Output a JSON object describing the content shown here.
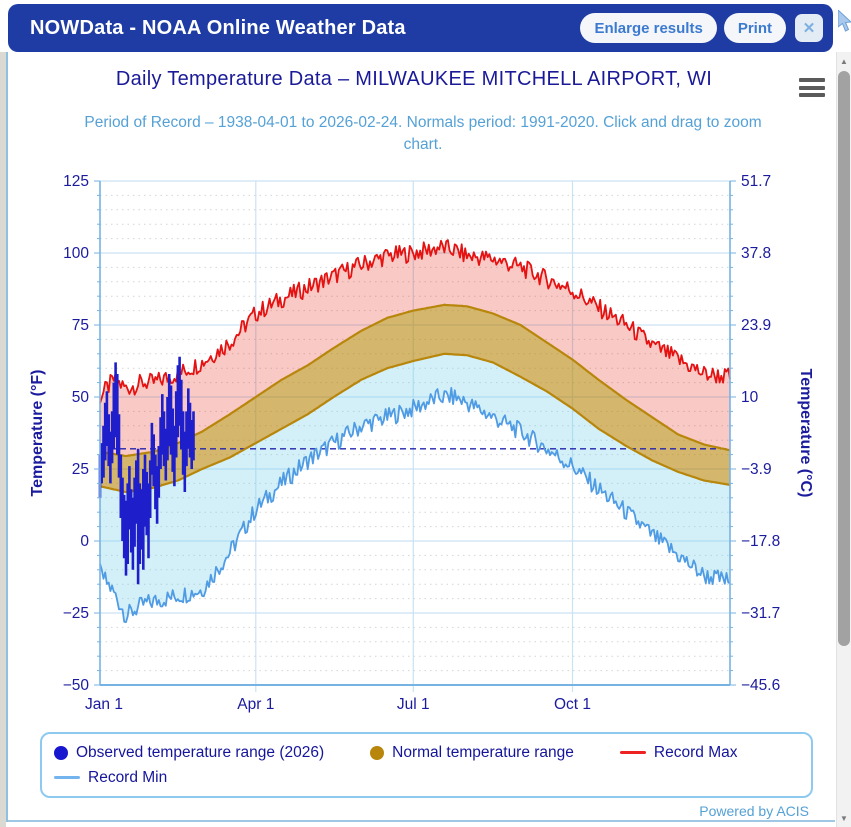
{
  "header": {
    "title": "NOWData - NOAA Online Weather Data",
    "buttons": {
      "enlarge": "Enlarge results",
      "print": "Print",
      "close_glyph": "✕"
    }
  },
  "footer": {
    "powered_by": "Powered by ACIS"
  },
  "scrollbar": {
    "up_glyph": "▲",
    "down_glyph": "▼"
  },
  "legend": {
    "items": [
      {
        "label": "Observed temperature range (2026)",
        "marker": "circle",
        "color": "#1717cf"
      },
      {
        "label": "Normal temperature range",
        "marker": "circle",
        "color": "#b8860b"
      },
      {
        "label": "Record Max",
        "marker": "line",
        "color": "#ee2222"
      },
      {
        "label": "Record Min",
        "marker": "line",
        "color": "#74b4ee"
      }
    ]
  },
  "chart_data": {
    "type": "line",
    "title": "Daily Temperature Data – MILWAUKEE MITCHELL AIRPORT, WI",
    "subtitle": "Period of Record – 1938-04-01 to 2026-02-24. Normals period: 1991-2020. Click and drag to zoom chart.",
    "x_axis": {
      "range_days": [
        0,
        364
      ],
      "ticks": [
        {
          "label": "Jan 1",
          "day": 0
        },
        {
          "label": "Apr 1",
          "day": 90
        },
        {
          "label": "Jul 1",
          "day": 181
        },
        {
          "label": "Oct 1",
          "day": 273
        }
      ]
    },
    "y_axis_f": {
      "label": "Temperature (°F)",
      "min": -50,
      "max": 125,
      "minor_step": 5,
      "ticks": [
        125,
        100,
        75,
        50,
        25,
        0,
        -25,
        -50
      ]
    },
    "y_axis_c": {
      "label": "Temperature (°C)",
      "ticks": [
        "51.7",
        "37.8",
        "23.9",
        "10",
        "−3.9",
        "−17.8",
        "−31.7",
        "−45.6"
      ]
    },
    "reference_line_f": 32,
    "style": {
      "grid": "#c9e2f4",
      "axis": "#76b3e3",
      "minor_grid": "#d4d4d4",
      "ref_line": "#2323ab",
      "text": "#1b1b9e"
    },
    "series": [
      {
        "name": "Record Max",
        "type": "line",
        "color": "#e51212",
        "fill_to_normal_max": "rgba(229,62,45,0.28)",
        "noise_amp": 3.2,
        "noise_seed": 7,
        "anchors_day_value": [
          [
            0,
            50
          ],
          [
            8,
            56
          ],
          [
            15,
            53
          ],
          [
            25,
            55
          ],
          [
            31,
            55
          ],
          [
            45,
            58
          ],
          [
            59,
            62
          ],
          [
            75,
            69
          ],
          [
            90,
            79
          ],
          [
            105,
            84
          ],
          [
            120,
            88
          ],
          [
            135,
            92
          ],
          [
            151,
            96
          ],
          [
            166,
            99
          ],
          [
            181,
            100
          ],
          [
            190,
            101
          ],
          [
            196,
            102
          ],
          [
            205,
            101
          ],
          [
            212,
            99
          ],
          [
            227,
            98
          ],
          [
            243,
            95
          ],
          [
            258,
            91
          ],
          [
            273,
            87
          ],
          [
            288,
            81
          ],
          [
            304,
            75
          ],
          [
            319,
            68
          ],
          [
            334,
            63
          ],
          [
            349,
            58
          ],
          [
            364,
            57
          ]
        ]
      },
      {
        "name": "Normal temperature range",
        "type": "band",
        "edge_color": "#b8860b",
        "fill": "rgba(184,134,11,0.60)",
        "max_anchors": [
          [
            0,
            31
          ],
          [
            15,
            29.5
          ],
          [
            31,
            31
          ],
          [
            45,
            34
          ],
          [
            59,
            38
          ],
          [
            75,
            44
          ],
          [
            90,
            50
          ],
          [
            105,
            56
          ],
          [
            120,
            61
          ],
          [
            135,
            67
          ],
          [
            151,
            73
          ],
          [
            166,
            77.5
          ],
          [
            181,
            80
          ],
          [
            199,
            82
          ],
          [
            212,
            81.5
          ],
          [
            227,
            79
          ],
          [
            243,
            75
          ],
          [
            258,
            69
          ],
          [
            273,
            63
          ],
          [
            288,
            56
          ],
          [
            304,
            49
          ],
          [
            319,
            43
          ],
          [
            334,
            37
          ],
          [
            349,
            33.5
          ],
          [
            364,
            31.5
          ]
        ],
        "min_anchors": [
          [
            0,
            19
          ],
          [
            15,
            17
          ],
          [
            31,
            18.5
          ],
          [
            45,
            21
          ],
          [
            59,
            25
          ],
          [
            75,
            29
          ],
          [
            90,
            34
          ],
          [
            105,
            39
          ],
          [
            120,
            44
          ],
          [
            135,
            50
          ],
          [
            151,
            56
          ],
          [
            166,
            60
          ],
          [
            181,
            62.5
          ],
          [
            199,
            65
          ],
          [
            212,
            64.5
          ],
          [
            227,
            62
          ],
          [
            243,
            57
          ],
          [
            258,
            52
          ],
          [
            273,
            46
          ],
          [
            288,
            39
          ],
          [
            304,
            33
          ],
          [
            319,
            28
          ],
          [
            334,
            24
          ],
          [
            349,
            21
          ],
          [
            364,
            19.5
          ]
        ]
      },
      {
        "name": "Record Min",
        "type": "line",
        "color": "#4f9be4",
        "fill_to_normal_min": "rgba(125,211,237,0.34)",
        "noise_amp": 3.2,
        "noise_seed": 13,
        "anchors_day_value": [
          [
            0,
            -11
          ],
          [
            8,
            -18
          ],
          [
            15,
            -26
          ],
          [
            25,
            -22
          ],
          [
            31,
            -21
          ],
          [
            45,
            -19
          ],
          [
            59,
            -17
          ],
          [
            75,
            -4
          ],
          [
            90,
            11
          ],
          [
            105,
            20
          ],
          [
            120,
            28
          ],
          [
            135,
            34
          ],
          [
            151,
            40
          ],
          [
            166,
            43
          ],
          [
            181,
            46
          ],
          [
            196,
            50
          ],
          [
            205,
            50
          ],
          [
            212,
            48
          ],
          [
            227,
            43
          ],
          [
            243,
            38
          ],
          [
            258,
            32
          ],
          [
            273,
            26
          ],
          [
            288,
            18
          ],
          [
            304,
            10
          ],
          [
            319,
            2
          ],
          [
            334,
            -5
          ],
          [
            349,
            -12
          ],
          [
            364,
            -14
          ]
        ]
      },
      {
        "name": "Observed temperature range (2026)",
        "type": "daily-range-bars",
        "color": "#1e1ecb",
        "start_day": 0,
        "high_low_f": [
          [
            30,
            15
          ],
          [
            34,
            20
          ],
          [
            40,
            22
          ],
          [
            48,
            28
          ],
          [
            52,
            33
          ],
          [
            44,
            26
          ],
          [
            38,
            20
          ],
          [
            45,
            27
          ],
          [
            55,
            32
          ],
          [
            62,
            36
          ],
          [
            58,
            30
          ],
          [
            44,
            22
          ],
          [
            30,
            8
          ],
          [
            22,
            0
          ],
          [
            16,
            -6
          ],
          [
            14,
            -12
          ],
          [
            20,
            -8
          ],
          [
            26,
            4
          ],
          [
            18,
            -4
          ],
          [
            15,
            -10
          ],
          [
            22,
            -2
          ],
          [
            28,
            6
          ],
          [
            32,
            -15
          ],
          [
            20,
            -8
          ],
          [
            18,
            -3
          ],
          [
            25,
            -10
          ],
          [
            30,
            5
          ],
          [
            24,
            2
          ],
          [
            20,
            -6
          ],
          [
            28,
            8
          ],
          [
            41,
            23
          ],
          [
            37,
            19
          ],
          [
            30,
            11
          ],
          [
            26,
            6
          ],
          [
            33,
            15
          ],
          [
            43,
            25
          ],
          [
            51,
            30
          ],
          [
            45,
            26
          ],
          [
            39,
            21
          ],
          [
            50,
            28
          ],
          [
            58,
            33
          ],
          [
            54,
            30
          ],
          [
            46,
            24
          ],
          [
            40,
            19
          ],
          [
            52,
            29
          ],
          [
            61,
            36
          ],
          [
            64,
            40
          ],
          [
            56,
            32
          ],
          [
            45,
            23
          ],
          [
            38,
            17
          ],
          [
            45,
            26
          ],
          [
            53,
            32
          ],
          [
            48,
            29
          ],
          [
            42,
            25
          ],
          [
            45,
            28
          ]
        ]
      }
    ]
  }
}
